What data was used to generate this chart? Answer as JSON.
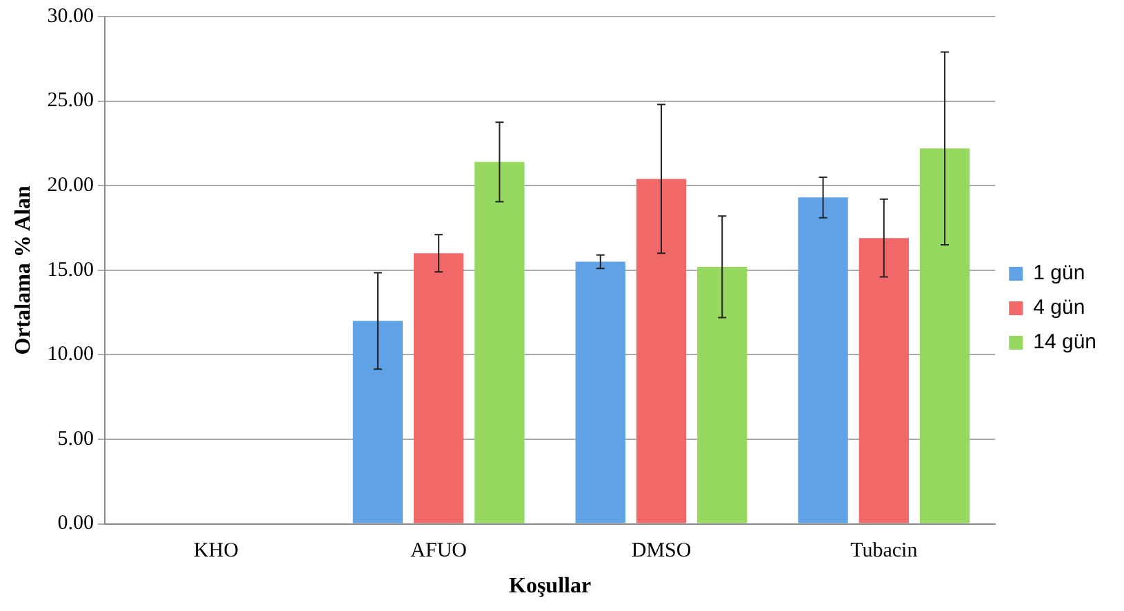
{
  "chart_data": {
    "type": "bar",
    "xlabel": "Koşullar",
    "ylabel": "Ortalama % Alan",
    "categories": [
      "KHO",
      "AFUO",
      "DMSO",
      "Tubacin"
    ],
    "series": [
      {
        "name": "1 gün",
        "color": "#5fa3e6",
        "values": [
          0,
          12.0,
          15.5,
          19.3
        ],
        "errors": [
          null,
          2.85,
          0.4,
          1.2
        ]
      },
      {
        "name": "4 gün",
        "color": "#f06868",
        "values": [
          0,
          16.0,
          20.4,
          16.9
        ],
        "errors": [
          null,
          1.1,
          4.4,
          2.3
        ]
      },
      {
        "name": "14 gün",
        "color": "#96d860",
        "values": [
          0,
          21.4,
          15.2,
          22.2
        ],
        "errors": [
          null,
          2.35,
          3.0,
          5.7
        ]
      }
    ],
    "ylim": [
      0,
      30
    ],
    "yticks": [
      {
        "value": 0,
        "label": "0.00"
      },
      {
        "value": 5,
        "label": "5.00"
      },
      {
        "value": 10,
        "label": "10.00"
      },
      {
        "value": 15,
        "label": "15.00"
      },
      {
        "value": 20,
        "label": "20.00"
      },
      {
        "value": 25,
        "label": "25.00"
      },
      {
        "value": 30,
        "label": "30.00"
      }
    ],
    "grid": "y",
    "legend": "right"
  }
}
